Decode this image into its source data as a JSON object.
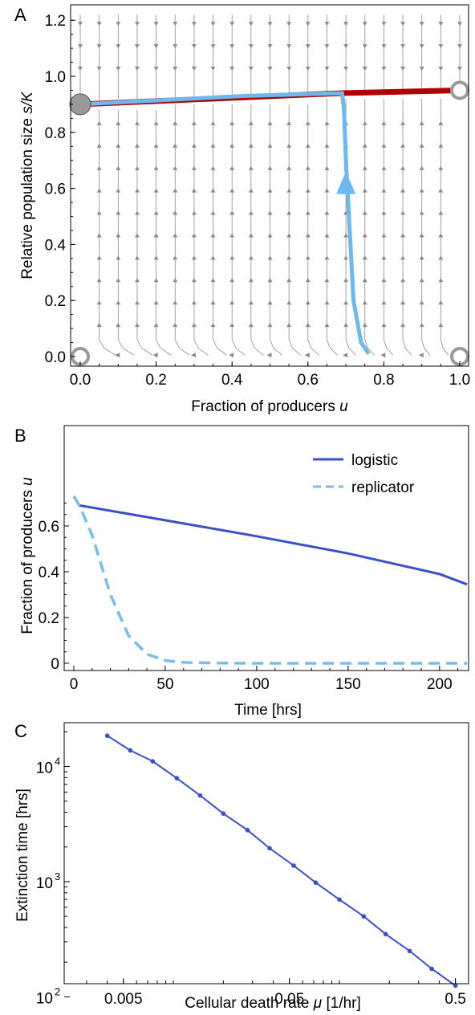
{
  "colors": {
    "stream": "#8a8a8a",
    "stable_branch": "#b00000",
    "trajectory": "#6cb8f0",
    "logistic": "#3a4fc8",
    "replicator": "#74bdee",
    "fixed_point": "#9a9a9a"
  },
  "chart_data": [
    {
      "type": "scatter",
      "panel": "A",
      "xlabel": "Fraction of producers",
      "xlabel_var": "u",
      "ylabel": "Relative population size",
      "ylabel_var": "s/K",
      "xlim": [
        0,
        1
      ],
      "ylim": [
        0,
        1.25
      ],
      "xticks": [
        "0.0",
        "0.2",
        "0.4",
        "0.6",
        "0.8",
        "1.0"
      ],
      "yticks": [
        "0.0",
        "0.2",
        "0.4",
        "0.6",
        "0.8",
        "1.0",
        "1.2"
      ],
      "branch": {
        "x": [
          0.0,
          0.69,
          1.0
        ],
        "y": [
          0.9,
          0.94,
          0.95
        ]
      },
      "trajectory": {
        "x": [
          0.76,
          0.74,
          0.72,
          0.71,
          0.7,
          0.695,
          0.69,
          0.43,
          0.0
        ],
        "y": [
          0.01,
          0.05,
          0.2,
          0.45,
          0.7,
          0.88,
          0.94,
          0.93,
          0.9
        ]
      },
      "arrow_at": {
        "x": 0.7,
        "y": 0.62
      },
      "fixed_points": [
        {
          "x": 0.0,
          "y": 0.9,
          "kind": "stable"
        },
        {
          "x": 1.0,
          "y": 0.95,
          "kind": "unstable"
        },
        {
          "x": 0.0,
          "y": 0.0,
          "kind": "unstable"
        },
        {
          "x": 1.0,
          "y": 0.0,
          "kind": "unstable"
        }
      ]
    },
    {
      "type": "line",
      "panel": "B",
      "xlabel": "Time [hrs]",
      "ylabel": "Fraction of producers",
      "ylabel_var": "u",
      "xlim": [
        0,
        215
      ],
      "ylim": [
        0,
        0.75
      ],
      "xticks": [
        0,
        50,
        100,
        150,
        200
      ],
      "yticks": [
        "0",
        "0.2",
        "0.4",
        "0.6"
      ],
      "legend_position": "top-right",
      "series": [
        {
          "name": "logistic",
          "style": "solid",
          "x": [
            0,
            3,
            50,
            100,
            150,
            200,
            215
          ],
          "y": [
            0.73,
            0.69,
            0.625,
            0.555,
            0.48,
            0.39,
            0.345
          ]
        },
        {
          "name": "replicator",
          "style": "dashed",
          "x": [
            0,
            3,
            10,
            20,
            30,
            40,
            50,
            60,
            80,
            100,
            150,
            215
          ],
          "y": [
            0.73,
            0.69,
            0.56,
            0.3,
            0.12,
            0.04,
            0.012,
            0.004,
            0.001,
            0.0,
            0.0,
            0.0
          ]
        }
      ]
    },
    {
      "type": "line",
      "panel": "C",
      "xlabel": "Cellular death rate",
      "xlabel_var": "μ",
      "xlabel_unit": "[1/hr]",
      "ylabel": "Extinction time [hrs]",
      "xscale": "log",
      "yscale": "log",
      "xlim": [
        0.0022,
        0.6
      ],
      "ylim": [
        130,
        24000
      ],
      "xticks": [
        "0.005",
        "0.05",
        "0.5"
      ],
      "xtick_values": [
        0.005,
        0.05,
        0.5
      ],
      "ytick_values": [
        100,
        1000,
        10000
      ],
      "ytick_bases": [
        "10",
        "10",
        "10"
      ],
      "ytick_exps": [
        "2",
        "3",
        "4"
      ],
      "series": [
        {
          "x": [
            0.004,
            0.0055,
            0.0075,
            0.0105,
            0.0145,
            0.02,
            0.028,
            0.038,
            0.053,
            0.072,
            0.1,
            0.14,
            0.19,
            0.265,
            0.36,
            0.5
          ],
          "y": [
            18500,
            13800,
            11100,
            7900,
            5600,
            3900,
            2800,
            1950,
            1380,
            980,
            700,
            500,
            350,
            250,
            175,
            125
          ]
        }
      ]
    }
  ]
}
